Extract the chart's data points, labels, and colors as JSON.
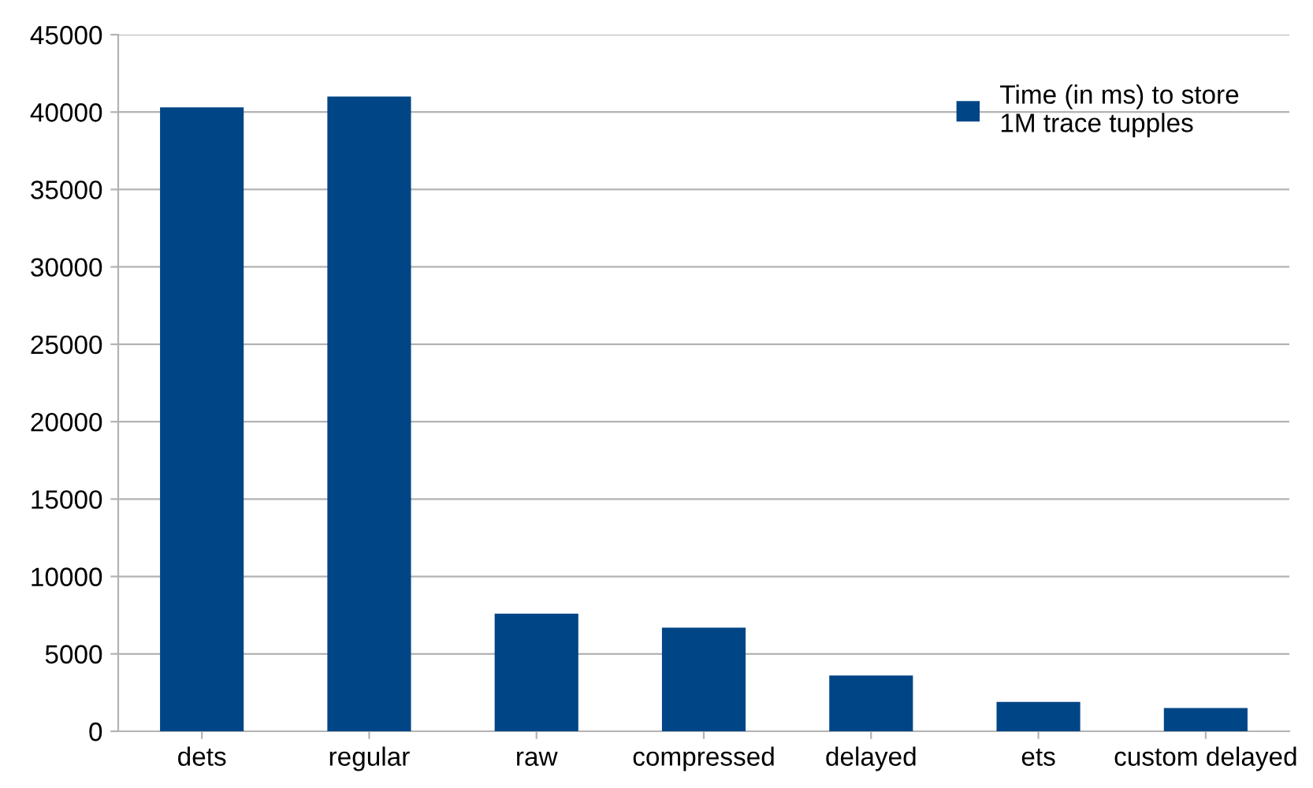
{
  "chart_data": {
    "type": "bar",
    "categories": [
      "dets",
      "regular",
      "raw",
      "compressed",
      "delayed",
      "ets",
      "custom delayed"
    ],
    "series": [
      {
        "name": "Time (in ms) to store\n1M trace tupples",
        "color": "#004586",
        "values": [
          40300,
          41000,
          7600,
          6700,
          3600,
          1900,
          1500
        ]
      }
    ],
    "ylim": [
      0,
      45000
    ],
    "yticks": [
      0,
      5000,
      10000,
      15000,
      20000,
      25000,
      30000,
      35000,
      40000,
      45000
    ],
    "grid": "y",
    "legend": "top right"
  }
}
